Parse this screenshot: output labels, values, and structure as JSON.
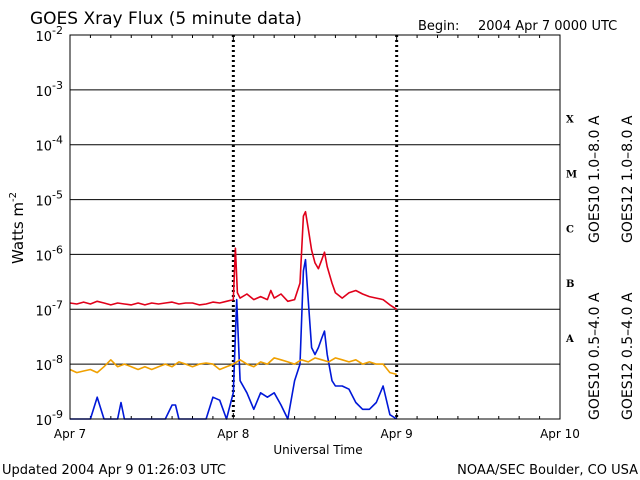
{
  "chart_data": {
    "type": "line",
    "title": "GOES Xray Flux (5 minute data)",
    "begin_label": "Begin:",
    "begin_value": "2004 Apr 7 0000 UTC",
    "xlabel": "Universal Time",
    "ylabel": "Watts m",
    "ylabel_exponent": "-2",
    "y_scale": "log",
    "ylim": [
      1e-09,
      0.01
    ],
    "y_ticks": [
      {
        "base": "10",
        "exp": "-2",
        "value": 0.01
      },
      {
        "base": "10",
        "exp": "-3",
        "value": 0.001
      },
      {
        "base": "10",
        "exp": "-4",
        "value": 0.0001
      },
      {
        "base": "10",
        "exp": "-5",
        "value": 1e-05
      },
      {
        "base": "10",
        "exp": "-6",
        "value": 1e-06
      },
      {
        "base": "10",
        "exp": "-7",
        "value": 1e-07
      },
      {
        "base": "10",
        "exp": "-8",
        "value": 1e-08
      },
      {
        "base": "10",
        "exp": "-9",
        "value": 1e-09
      }
    ],
    "x_ticks": [
      "Apr 7",
      "Apr 8",
      "Apr 9",
      "Apr 10"
    ],
    "x_range_hours": [
      0,
      72
    ],
    "flare_classes": [
      {
        "label": "X",
        "value": 0.0003
      },
      {
        "label": "M",
        "value": 3e-05
      },
      {
        "label": "C",
        "value": 3e-06
      },
      {
        "label": "B",
        "value": 3e-07
      },
      {
        "label": "A",
        "value": 3e-08
      }
    ],
    "grid": "horizontal",
    "series": [
      {
        "name": "GOES12 1.0–8.0 A",
        "color": "#e0001a",
        "points": [
          [
            0,
            1.3e-07
          ],
          [
            1,
            1.25e-07
          ],
          [
            2,
            1.35e-07
          ],
          [
            3,
            1.25e-07
          ],
          [
            4,
            1.4e-07
          ],
          [
            5,
            1.3e-07
          ],
          [
            6,
            1.2e-07
          ],
          [
            7,
            1.3e-07
          ],
          [
            8,
            1.25e-07
          ],
          [
            9,
            1.2e-07
          ],
          [
            10,
            1.3e-07
          ],
          [
            11,
            1.2e-07
          ],
          [
            12,
            1.3e-07
          ],
          [
            13,
            1.25e-07
          ],
          [
            14,
            1.3e-07
          ],
          [
            15,
            1.35e-07
          ],
          [
            16,
            1.25e-07
          ],
          [
            17,
            1.3e-07
          ],
          [
            18,
            1.3e-07
          ],
          [
            19,
            1.2e-07
          ],
          [
            20,
            1.25e-07
          ],
          [
            21,
            1.35e-07
          ],
          [
            22,
            1.3e-07
          ],
          [
            23,
            1.4e-07
          ],
          [
            24,
            1.5e-07
          ],
          [
            24.3,
            1.3e-06
          ],
          [
            24.6,
            2e-07
          ],
          [
            25,
            1.6e-07
          ],
          [
            26,
            1.9e-07
          ],
          [
            27,
            1.5e-07
          ],
          [
            28,
            1.7e-07
          ],
          [
            29,
            1.5e-07
          ],
          [
            29.5,
            2.2e-07
          ],
          [
            30,
            1.6e-07
          ],
          [
            31,
            1.9e-07
          ],
          [
            32,
            1.4e-07
          ],
          [
            33,
            1.5e-07
          ],
          [
            33.8,
            3e-07
          ],
          [
            34.3,
            5e-06
          ],
          [
            34.6,
            6e-06
          ],
          [
            35,
            3e-06
          ],
          [
            35.5,
            1.2e-06
          ],
          [
            36,
            7e-07
          ],
          [
            36.5,
            5.5e-07
          ],
          [
            37,
            8e-07
          ],
          [
            37.4,
            1.1e-06
          ],
          [
            37.8,
            6e-07
          ],
          [
            38.5,
            3e-07
          ],
          [
            39,
            2e-07
          ],
          [
            40,
            1.6e-07
          ],
          [
            41,
            2e-07
          ],
          [
            42,
            2.2e-07
          ],
          [
            43,
            1.9e-07
          ],
          [
            44,
            1.7e-07
          ],
          [
            45,
            1.6e-07
          ],
          [
            46,
            1.5e-07
          ],
          [
            47,
            1.2e-07
          ],
          [
            48,
            1e-07
          ]
        ]
      },
      {
        "name": "GOES12 0.5–4.0 A",
        "color": "#0018d8",
        "points": [
          [
            0,
            1e-09
          ],
          [
            2,
            1e-09
          ],
          [
            3,
            1e-09
          ],
          [
            4,
            2.5e-09
          ],
          [
            5,
            1e-09
          ],
          [
            6,
            1e-09
          ],
          [
            7,
            1e-09
          ],
          [
            7.5,
            2e-09
          ],
          [
            8,
            1e-09
          ],
          [
            10,
            1e-09
          ],
          [
            12,
            1e-09
          ],
          [
            14,
            1e-09
          ],
          [
            15,
            1.8e-09
          ],
          [
            15.5,
            1.8e-09
          ],
          [
            16,
            1e-09
          ],
          [
            18,
            1e-09
          ],
          [
            20,
            1e-09
          ],
          [
            21,
            2.5e-09
          ],
          [
            22,
            2.2e-09
          ],
          [
            23,
            1e-09
          ],
          [
            24,
            3e-09
          ],
          [
            24.5,
            1.5e-07
          ],
          [
            25,
            5e-09
          ],
          [
            26,
            3e-09
          ],
          [
            27,
            1.5e-09
          ],
          [
            28,
            3e-09
          ],
          [
            29,
            2.5e-09
          ],
          [
            30,
            3e-09
          ],
          [
            31,
            1.8e-09
          ],
          [
            32,
            1e-09
          ],
          [
            33,
            5e-09
          ],
          [
            33.8,
            1e-08
          ],
          [
            34.3,
            5e-07
          ],
          [
            34.6,
            8e-07
          ],
          [
            35,
            1.5e-07
          ],
          [
            35.5,
            2e-08
          ],
          [
            36,
            1.5e-08
          ],
          [
            36.5,
            2e-08
          ],
          [
            37,
            3e-08
          ],
          [
            37.4,
            4e-08
          ],
          [
            37.8,
            1.5e-08
          ],
          [
            38.5,
            5e-09
          ],
          [
            39,
            4e-09
          ],
          [
            40,
            4e-09
          ],
          [
            41,
            3.5e-09
          ],
          [
            42,
            2e-09
          ],
          [
            43,
            1.5e-09
          ],
          [
            44,
            1.5e-09
          ],
          [
            45,
            2e-09
          ],
          [
            46,
            4e-09
          ],
          [
            47,
            1.2e-09
          ],
          [
            48,
            1e-09
          ]
        ]
      },
      {
        "name": "GOES10 1.0–8.0 A",
        "color": "#7a2eb8",
        "points": []
      },
      {
        "name": "GOES10 0.5–4.0 A",
        "color": "#f0a000",
        "points": [
          [
            0,
            8e-09
          ],
          [
            1,
            7e-09
          ],
          [
            2,
            7.5e-09
          ],
          [
            3,
            8e-09
          ],
          [
            4,
            7e-09
          ],
          [
            5,
            9e-09
          ],
          [
            6,
            1.2e-08
          ],
          [
            7,
            9e-09
          ],
          [
            8,
            1e-08
          ],
          [
            9,
            9e-09
          ],
          [
            10,
            8e-09
          ],
          [
            11,
            9e-09
          ],
          [
            12,
            8e-09
          ],
          [
            13,
            9e-09
          ],
          [
            14,
            1e-08
          ],
          [
            15,
            9e-09
          ],
          [
            16,
            1.1e-08
          ],
          [
            17,
            1e-08
          ],
          [
            18,
            9e-09
          ],
          [
            19,
            1e-08
          ],
          [
            20,
            1.05e-08
          ],
          [
            21,
            1e-08
          ],
          [
            22,
            8e-09
          ],
          [
            23,
            9e-09
          ],
          [
            24,
            1e-08
          ],
          [
            25,
            1.2e-08
          ],
          [
            26,
            1e-08
          ],
          [
            27,
            9e-09
          ],
          [
            28,
            1.1e-08
          ],
          [
            29,
            1e-08
          ],
          [
            30,
            1.3e-08
          ],
          [
            31,
            1.2e-08
          ],
          [
            32,
            1.1e-08
          ],
          [
            33,
            1e-08
          ],
          [
            34,
            1.2e-08
          ],
          [
            35,
            1.1e-08
          ],
          [
            36,
            1.3e-08
          ],
          [
            37,
            1.2e-08
          ],
          [
            38,
            1.1e-08
          ],
          [
            39,
            1.3e-08
          ],
          [
            40,
            1.2e-08
          ],
          [
            41,
            1.1e-08
          ],
          [
            42,
            1.2e-08
          ],
          [
            43,
            1e-08
          ],
          [
            44,
            1.1e-08
          ],
          [
            45,
            1e-08
          ],
          [
            46,
            1e-08
          ],
          [
            47,
            7e-09
          ],
          [
            48,
            6.5e-09
          ]
        ]
      }
    ],
    "right_legend_top": [
      {
        "text": "GOES12 1.0–8.0 A",
        "color": "#e0001a"
      },
      {
        "text": "GOES10 1.0–8.0 A",
        "color": "#7a2eb8"
      }
    ],
    "right_legend_bottom": [
      {
        "text": "GOES12 0.5–4.0 A",
        "color": "#0018d8"
      },
      {
        "text": "GOES10 0.5–4.0 A",
        "color": "#f0a000"
      }
    ]
  },
  "footer": {
    "updated": "Updated 2004 Apr  9 01:26:03 UTC",
    "credit": "NOAA/SEC Boulder, CO USA"
  }
}
